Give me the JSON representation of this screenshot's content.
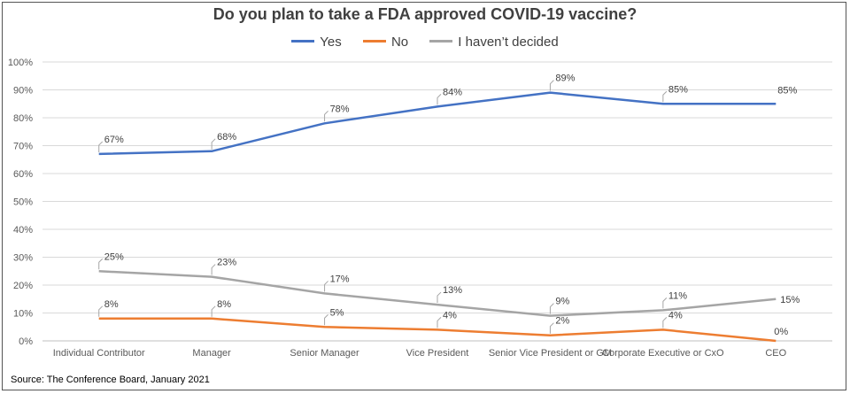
{
  "chart_data": {
    "type": "line",
    "title": "Do you plan to take a FDA approved COVID-19 vaccine?",
    "categories": [
      "Individual Contributor",
      "Manager",
      "Senior Manager",
      "Vice President",
      "Senior Vice President or GM",
      "Corporate Executive or CxO",
      "CEO"
    ],
    "series": [
      {
        "name": "Yes",
        "color": "#4472C4",
        "values": [
          67,
          68,
          78,
          84,
          89,
          85,
          85
        ],
        "labels": [
          "67%",
          "68%",
          "78%",
          "84%",
          "89%",
          "85%",
          "85%"
        ]
      },
      {
        "name": "No",
        "color": "#ED7D31",
        "values": [
          8,
          8,
          5,
          4,
          2,
          4,
          0
        ],
        "labels": [
          "8%",
          "8%",
          "5%",
          "4%",
          "2%",
          "4%",
          "0%"
        ]
      },
      {
        "name": "I haven’t decided",
        "color": "#A5A5A5",
        "values": [
          25,
          23,
          17,
          13,
          9,
          11,
          15
        ],
        "labels": [
          "25%",
          "23%",
          "17%",
          "13%",
          "9%",
          "11%",
          "15%"
        ]
      }
    ],
    "y_ticks": [
      "0%",
      "10%",
      "20%",
      "30%",
      "40%",
      "50%",
      "60%",
      "70%",
      "80%",
      "90%",
      "100%"
    ],
    "ylim": [
      0,
      100
    ],
    "grid": true,
    "legend_position": "top"
  },
  "source": "Source: The Conference Board, January 2021"
}
